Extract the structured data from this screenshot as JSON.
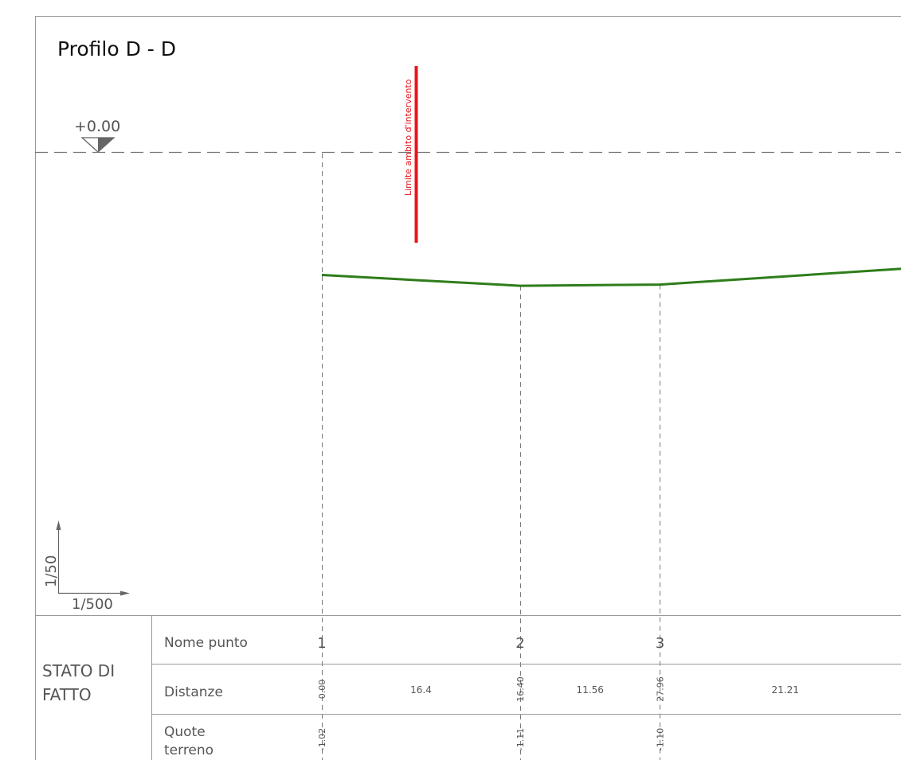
{
  "drawing": {
    "title": "Profilo D - D",
    "reference_level": "+0.00",
    "boundary_label": "Limite ambito d'intervento",
    "scale": {
      "vertical": "1/50",
      "horizontal": "1/500"
    },
    "colors": {
      "terrain": "#2e7d1a",
      "boundary": "#e8141c",
      "lines": "#777777",
      "text": "#444444"
    }
  },
  "table": {
    "section_label_line1": "STATO DI",
    "section_label_line2": "FATTO",
    "row_labels": {
      "nome_punto": "Nome punto",
      "distanze": "Distanze",
      "quote_line1": "Quote",
      "quote_line2": "terreno"
    }
  },
  "chart_data": {
    "type": "line",
    "title": "Profilo D - D",
    "x_unit": "m",
    "y_unit": "m",
    "points": [
      {
        "name": "1",
        "progressive": "0.00",
        "x": 0.0,
        "elevation": "-1.02",
        "y": -1.02
      },
      {
        "name": "2",
        "progressive": "16.40",
        "x": 16.4,
        "elevation": "-1.11",
        "y": -1.11
      },
      {
        "name": "3",
        "progressive": "27.96",
        "x": 27.96,
        "elevation": "-1.10",
        "y": -1.1
      }
    ],
    "partial_distances": [
      "16.4",
      "11.56",
      "21.21"
    ],
    "terrain_continues_to": {
      "x": 49.17,
      "y": -0.96
    },
    "reference_elevation": 0.0
  }
}
